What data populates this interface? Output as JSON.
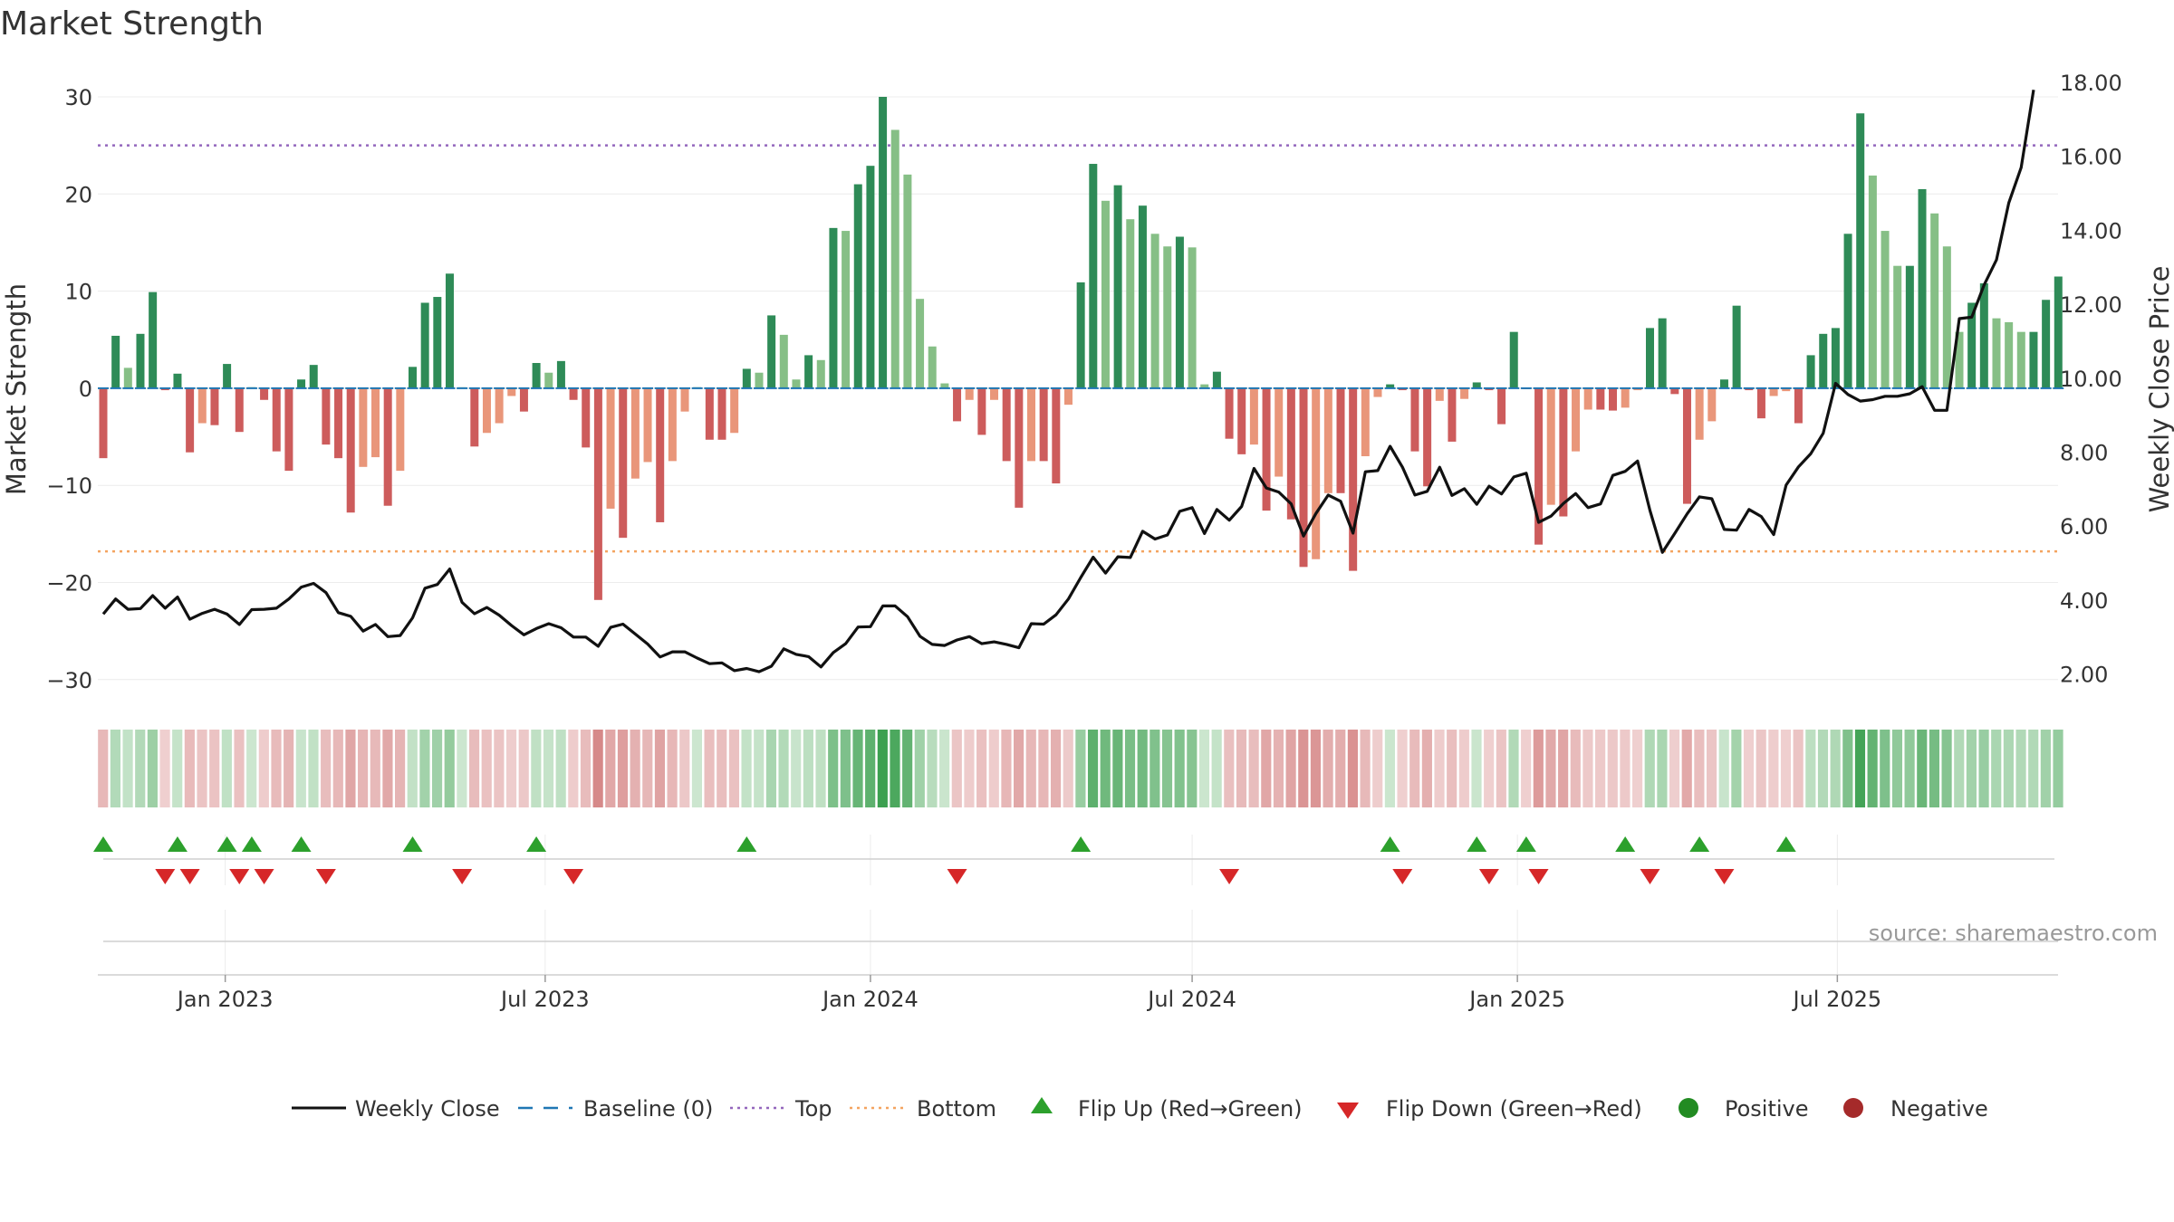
{
  "chart_data": {
    "type": "bar+line",
    "title": "Market Strength",
    "ylabel_left": "Market Strength",
    "ylabel_right": "Weekly Close Price",
    "ylim_left": [
      -30,
      30
    ],
    "ylim_right": [
      2.0,
      18.0
    ],
    "yticks_left": [
      "30",
      "20",
      "10",
      "0",
      "−10",
      "−20",
      "−30"
    ],
    "yticks_right": [
      "18.00",
      "16.00",
      "14.00",
      "12.00",
      "10.00",
      "8.00",
      "6.00",
      "4.00",
      "2.00"
    ],
    "xticks": [
      "Jan 2023",
      "Jul 2023",
      "Jan 2024",
      "Jul 2024",
      "Jan 2025",
      "Jul 2025"
    ],
    "x_start": "2022-10-24",
    "x_step_days": 7,
    "top_level": 25,
    "bottom_level": -16.8,
    "market_strength": [
      -7.2,
      5.4,
      2.1,
      5.6,
      9.9,
      -0.2,
      1.5,
      -6.6,
      -3.6,
      -3.8,
      2.5,
      -4.5,
      0.1,
      -1.2,
      -6.5,
      -8.5,
      0.9,
      2.4,
      -5.8,
      -7.2,
      -12.8,
      -8.1,
      -7.1,
      -12.1,
      -8.5,
      2.2,
      8.8,
      9.4,
      11.8,
      0.1,
      -6.0,
      -4.6,
      -3.6,
      -0.8,
      -2.4,
      2.6,
      1.6,
      2.8,
      -1.2,
      -6.1,
      -21.8,
      -12.4,
      -15.4,
      -9.3,
      -7.6,
      -13.8,
      -7.5,
      -2.4,
      0.1,
      -5.3,
      -5.3,
      -4.6,
      2.0,
      1.6,
      7.5,
      5.5,
      0.9,
      3.4,
      2.9,
      16.5,
      16.2,
      21.0,
      22.9,
      30.0,
      26.6,
      22.0,
      9.2,
      4.3,
      0.5,
      -3.4,
      -1.2,
      -4.8,
      -1.2,
      -7.5,
      -12.3,
      -7.5,
      -7.5,
      -9.8,
      -1.7,
      10.9,
      23.1,
      19.3,
      20.9,
      17.4,
      18.8,
      15.9,
      14.6,
      15.6,
      14.5,
      0.4,
      1.7,
      -5.2,
      -6.8,
      -5.8,
      -12.6,
      -9.1,
      -13.5,
      -18.4,
      -17.6,
      -10.8,
      -10.8,
      -18.8,
      -7.0,
      -0.9,
      0.4,
      -0.2,
      -6.5,
      -10.1,
      -1.3,
      -5.5,
      -1.1,
      0.6,
      -0.2,
      -3.7,
      5.8,
      -0.1,
      -16.1,
      -12.0,
      -13.2,
      -6.5,
      -2.2,
      -2.2,
      -2.3,
      -2.0,
      -0.2,
      6.2,
      7.2,
      -0.6,
      -11.9,
      -5.3,
      -3.4,
      0.9,
      8.5,
      -0.2,
      -3.1,
      -0.8,
      -0.3,
      -3.6,
      3.4,
      5.6,
      6.2,
      15.9,
      28.3,
      21.9,
      16.2,
      12.6,
      12.6,
      20.5,
      18.0,
      14.6,
      5.8,
      8.8,
      10.8,
      7.2,
      6.8,
      5.8,
      5.8,
      9.1,
      11.5
    ],
    "weekly_close": [
      3.62,
      4.03,
      3.75,
      3.77,
      4.12,
      3.78,
      4.08,
      3.48,
      3.64,
      3.75,
      3.62,
      3.34,
      3.74,
      3.75,
      3.78,
      4.03,
      4.35,
      4.45,
      4.2,
      3.66,
      3.56,
      3.16,
      3.34,
      3.01,
      3.04,
      3.52,
      4.32,
      4.42,
      4.84,
      3.94,
      3.63,
      3.8,
      3.59,
      3.31,
      3.06,
      3.23,
      3.36,
      3.25,
      3.0,
      3.0,
      2.75,
      3.26,
      3.35,
      3.08,
      2.81,
      2.46,
      2.6,
      2.6,
      2.43,
      2.28,
      2.3,
      2.09,
      2.15,
      2.06,
      2.21,
      2.68,
      2.53,
      2.47,
      2.19,
      2.58,
      2.82,
      3.27,
      3.28,
      3.84,
      3.84,
      3.55,
      3.02,
      2.8,
      2.77,
      2.92,
      3.01,
      2.82,
      2.87,
      2.8,
      2.71,
      3.36,
      3.35,
      3.6,
      4.03,
      4.61,
      5.16,
      4.73,
      5.17,
      5.15,
      5.86,
      5.65,
      5.76,
      6.4,
      6.5,
      5.8,
      6.45,
      6.16,
      6.53,
      7.56,
      7.03,
      6.92,
      6.6,
      5.73,
      6.34,
      6.84,
      6.67,
      5.81,
      7.47,
      7.5,
      8.16,
      7.59,
      6.84,
      6.94,
      7.59,
      6.83,
      7.01,
      6.59,
      7.08,
      6.87,
      7.33,
      7.43,
      6.1,
      6.27,
      6.61,
      6.88,
      6.5,
      6.6,
      7.37,
      7.48,
      7.76,
      6.42,
      5.29,
      5.8,
      6.33,
      6.79,
      6.74,
      5.91,
      5.89,
      6.45,
      6.26,
      5.77,
      7.11,
      7.6,
      7.96,
      8.51,
      9.86,
      9.56,
      9.38,
      9.42,
      9.51,
      9.51,
      9.58,
      9.77,
      9.13,
      9.13,
      11.61,
      11.65,
      12.52,
      13.2,
      14.74,
      15.7,
      17.8
    ],
    "flip_up_weeks": [
      0,
      6,
      10,
      12,
      16,
      25,
      35,
      52,
      79,
      104,
      111,
      115,
      123,
      129,
      136
    ],
    "flip_down_weeks": [
      5,
      7,
      11,
      13,
      18,
      29,
      38,
      69,
      91,
      105,
      112,
      116,
      125,
      131
    ],
    "source": "source: sharemaestro.com",
    "legend": [
      {
        "label": "Weekly Close",
        "kind": "line"
      },
      {
        "label": "Baseline (0)",
        "kind": "dash"
      },
      {
        "label": "Top",
        "kind": "dotpurple"
      },
      {
        "label": "Bottom",
        "kind": "dotorange"
      },
      {
        "label": "Flip Up (Red→Green)",
        "kind": "triup"
      },
      {
        "label": "Flip Down (Green→Red)",
        "kind": "tridown"
      },
      {
        "label": "Positive",
        "kind": "dotgreen"
      },
      {
        "label": "Negative",
        "kind": "dotred"
      }
    ]
  },
  "colors": {
    "strong_positive": "#2e8b57",
    "weak_positive": "#86bf86",
    "strong_negative": "#cd5c5c",
    "weak_negative": "#e9967a",
    "line": "#111111",
    "baseline": "#1f77b4",
    "top": "#9467bd",
    "bottom": "#f4a460",
    "flip_up": "#2ca02c",
    "flip_down": "#d62728",
    "positive_dot": "#228b22",
    "negative_dot": "#a52a2a"
  }
}
